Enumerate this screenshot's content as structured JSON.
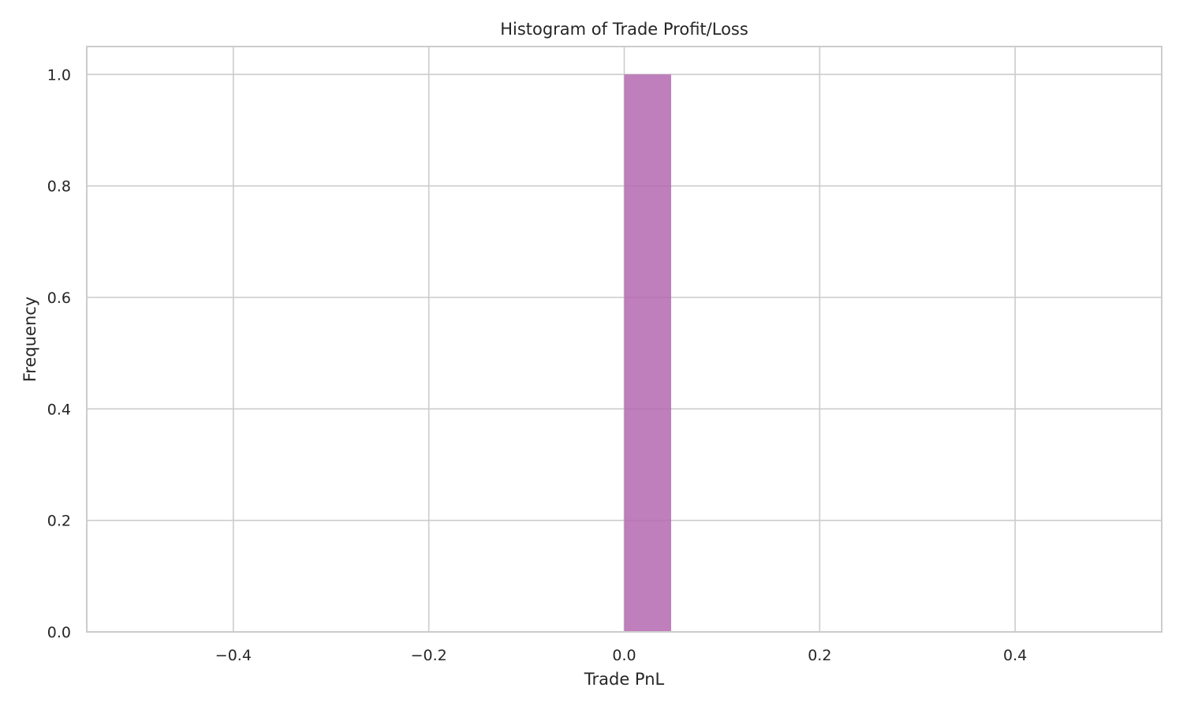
{
  "chart_data": {
    "type": "bar",
    "title": "Histogram of Trade Profit/Loss",
    "xlabel": "Trade PnL",
    "ylabel": "Frequency",
    "xlim": [
      -0.55,
      0.55
    ],
    "ylim": [
      0,
      1.05
    ],
    "x_ticks": [
      -0.4,
      -0.2,
      0.0,
      0.2,
      0.4
    ],
    "x_tick_labels": [
      "−0.4",
      "−0.2",
      "0.0",
      "0.2",
      "0.4"
    ],
    "y_ticks": [
      0.0,
      0.2,
      0.4,
      0.6,
      0.8,
      1.0
    ],
    "y_tick_labels": [
      "0.0",
      "0.2",
      "0.4",
      "0.6",
      "0.8",
      "1.0"
    ],
    "grid": true,
    "bins": [
      {
        "x_start": 0.0,
        "x_end": 0.048,
        "count": 1
      }
    ],
    "bar_color": "#b467b0",
    "bar_opacity": 0.85
  }
}
